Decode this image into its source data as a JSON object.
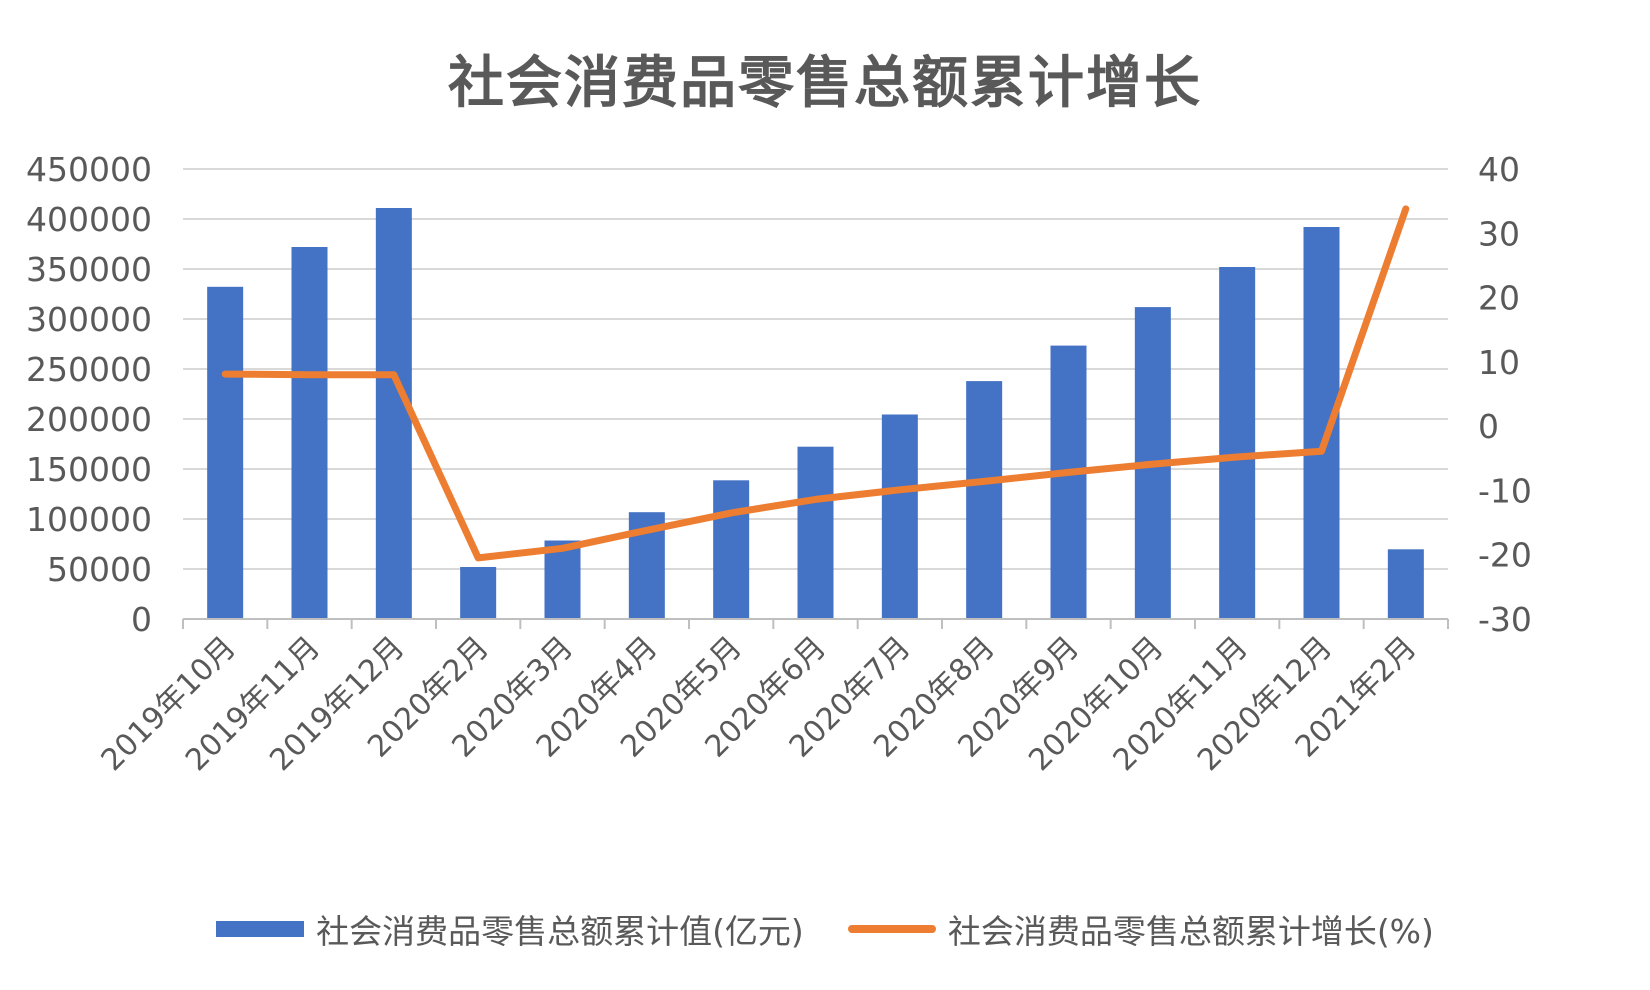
{
  "chart_data": {
    "type": "bar",
    "title": "社会消费品零售总额累计增长",
    "categories": [
      "2019年10月",
      "2019年11月",
      "2019年12月",
      "2020年2月",
      "2020年3月",
      "2020年4月",
      "2020年5月",
      "2020年6月",
      "2020年7月",
      "2020年8月",
      "2020年9月",
      "2020年10月",
      "2020年11月",
      "2020年12月",
      "2021年2月"
    ],
    "series": [
      {
        "name": "社会消费品零售总额累计值(亿元)",
        "type": "bar",
        "axis": "left",
        "color": "#4472C4",
        "values": [
          332200,
          372000,
          411000,
          52000,
          78500,
          106800,
          138700,
          172300,
          204500,
          237900,
          273400,
          311900,
          352000,
          392000,
          69700
        ]
      },
      {
        "name": "社会消费品零售总额累计增长(%)",
        "type": "line",
        "axis": "right",
        "color": "#ED7D31",
        "values": [
          8.1,
          8.0,
          8.0,
          -20.5,
          -19.0,
          -16.2,
          -13.5,
          -11.4,
          -9.9,
          -8.6,
          -7.2,
          -5.9,
          -4.8,
          -3.9,
          33.8
        ]
      }
    ],
    "yleft": {
      "min": 0,
      "max": 450000,
      "ticks": [
        "0",
        "50000",
        "100000",
        "150000",
        "200000",
        "250000",
        "300000",
        "350000",
        "400000",
        "450000"
      ]
    },
    "yright": {
      "min": -30,
      "max": 40,
      "ticks": [
        "-30",
        "-20",
        "-10",
        "0",
        "10",
        "20",
        "30",
        "40"
      ]
    },
    "grid": true,
    "legend_position": "bottom"
  }
}
